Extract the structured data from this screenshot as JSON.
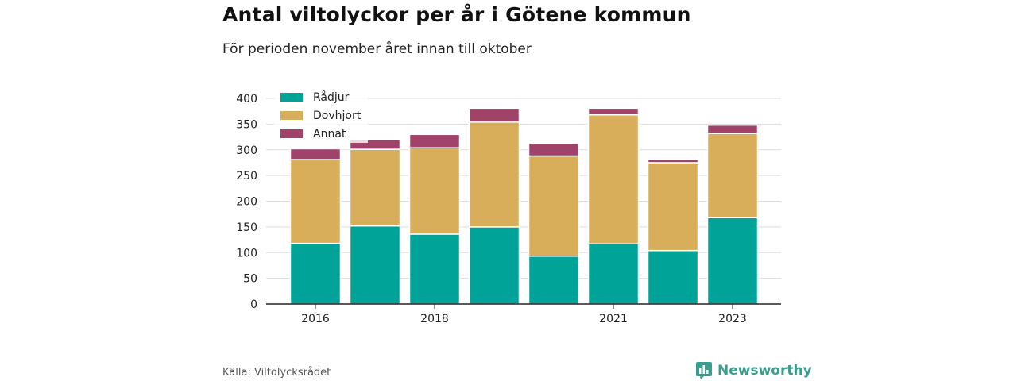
{
  "header": {
    "title": "Antal viltolyckor per år i Götene kommun",
    "subtitle": "För perioden november året innan till oktober"
  },
  "footer": {
    "source": "Källa: Viltolycksrådet",
    "brand": "Newsworthy",
    "brand_icon": "bar-chart-logo-icon"
  },
  "colors": {
    "Rådjur": "#00a398",
    "Dovhjort": "#d8ae5a",
    "Annat": "#a0426a",
    "brand": "#3a9e8e"
  },
  "chart_data": {
    "type": "bar",
    "stacked": true,
    "x": [
      2016,
      2017,
      2018,
      2019,
      2020,
      2021,
      2022,
      2023
    ],
    "x_tick_labels": [
      "2016",
      "",
      "2018",
      "",
      "",
      "2021",
      "",
      "2023"
    ],
    "series": [
      {
        "name": "Rådjur",
        "values": [
          118,
          152,
          136,
          150,
          93,
          117,
          104,
          168
        ]
      },
      {
        "name": "Dovhjort",
        "values": [
          163,
          149,
          168,
          204,
          195,
          251,
          171,
          164
        ]
      },
      {
        "name": "Annat",
        "values": [
          21,
          19,
          26,
          27,
          25,
          13,
          7,
          16
        ]
      }
    ],
    "ylim": [
      0,
      400
    ],
    "yticks": [
      0,
      50,
      100,
      150,
      200,
      250,
      300,
      350,
      400
    ],
    "grid": true,
    "legend": "top-left"
  }
}
